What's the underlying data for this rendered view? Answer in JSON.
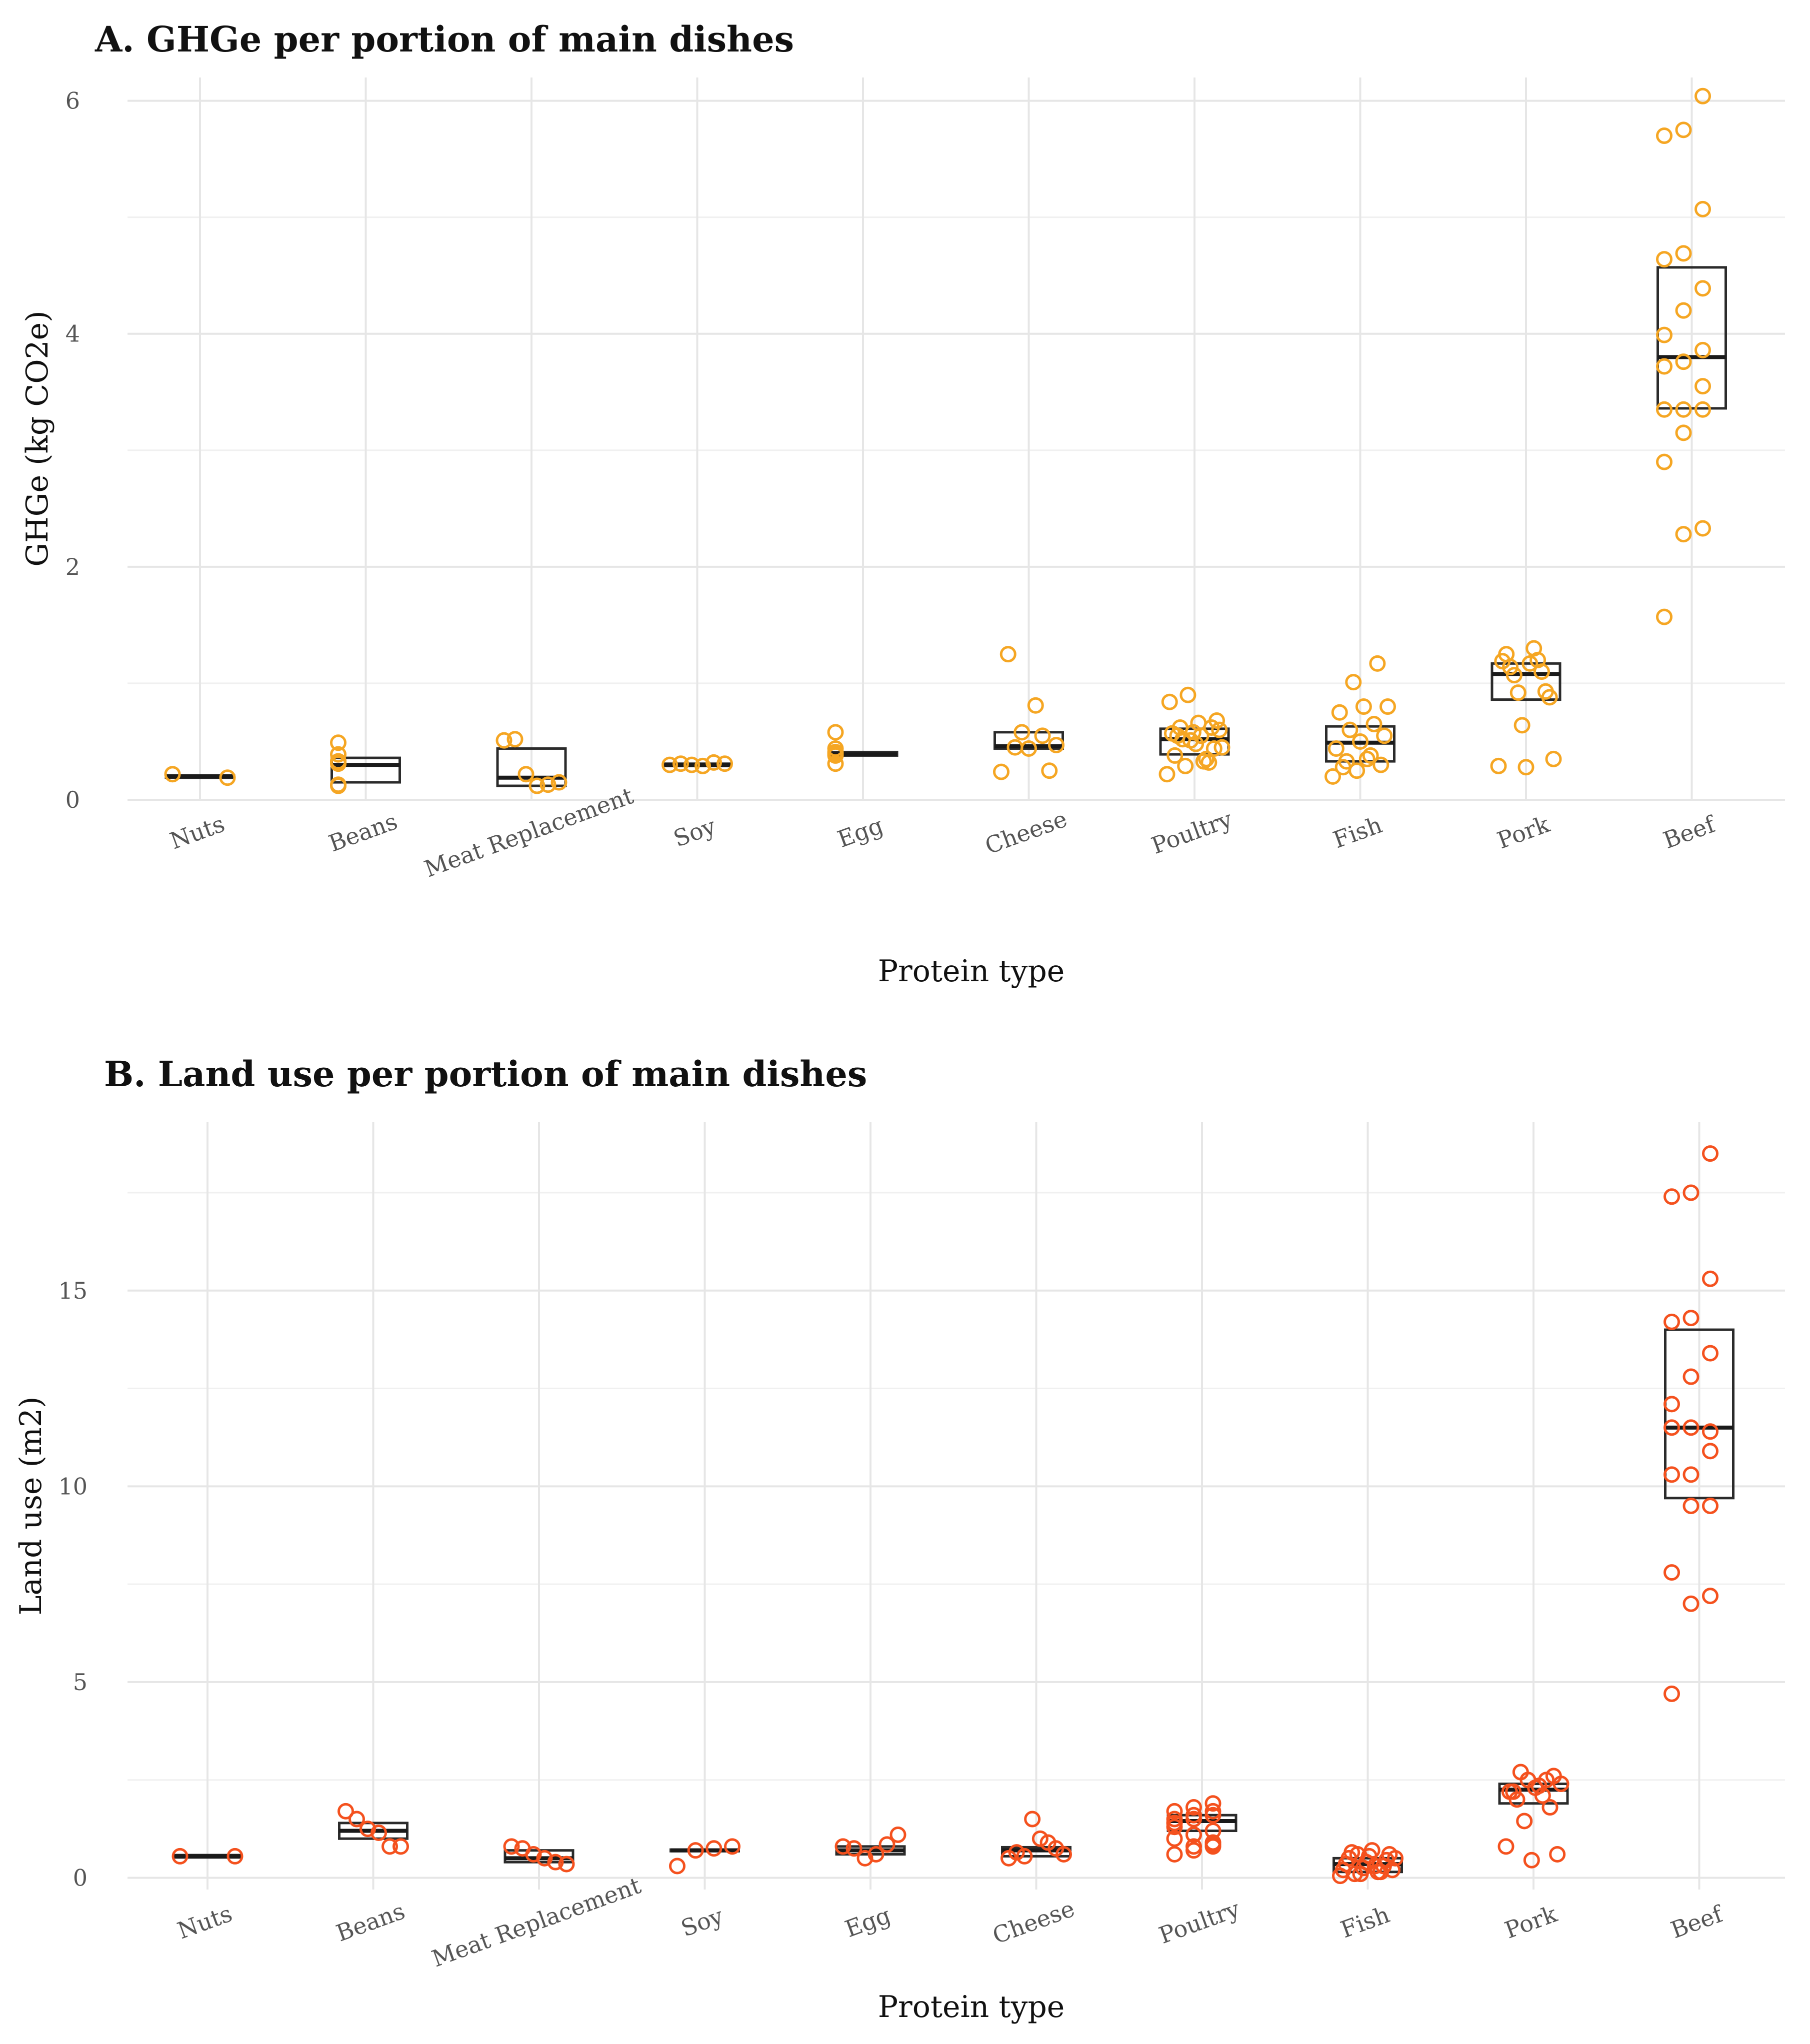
{
  "chart_data": [
    {
      "type": "boxplot",
      "title": "A. GHGe per portion of main dishes",
      "xlabel": "Protein type",
      "ylabel": "GHGe (kg CO2e)",
      "ylim": [
        0,
        6.2
      ],
      "yticks": [
        0,
        2,
        4,
        6
      ],
      "point_color": "#f5a623",
      "categories": [
        "Nuts",
        "Beans",
        "Meat Replacement",
        "Soy",
        "Egg",
        "Cheese",
        "Poultry",
        "Fish",
        "Pork",
        "Beef"
      ],
      "boxes": [
        {
          "q1": 0.19,
          "median": 0.2,
          "q3": 0.21
        },
        {
          "q1": 0.15,
          "median": 0.3,
          "q3": 0.36
        },
        {
          "q1": 0.12,
          "median": 0.19,
          "q3": 0.44
        },
        {
          "q1": 0.29,
          "median": 0.3,
          "q3": 0.31
        },
        {
          "q1": 0.38,
          "median": 0.39,
          "q3": 0.41
        },
        {
          "q1": 0.44,
          "median": 0.46,
          "q3": 0.58
        },
        {
          "q1": 0.39,
          "median": 0.52,
          "q3": 0.61
        },
        {
          "q1": 0.33,
          "median": 0.49,
          "q3": 0.63
        },
        {
          "q1": 0.86,
          "median": 1.08,
          "q3": 1.17
        },
        {
          "q1": 3.36,
          "median": 3.8,
          "q3": 4.57
        }
      ],
      "points": [
        [
          0.22,
          0.19
        ],
        [
          0.12,
          0.33,
          0.31,
          0.39,
          0.13,
          0.49,
          0.33
        ],
        [
          0.51,
          0.52,
          0.22,
          0.12,
          0.13,
          0.15
        ],
        [
          0.3,
          0.31,
          0.3,
          0.29,
          0.32,
          0.31
        ],
        [
          0.31,
          0.39,
          0.58,
          0.4,
          0.38,
          0.44,
          0.41
        ],
        [
          0.24,
          0.25,
          0.81,
          0.58,
          1.25,
          0.47,
          0.55,
          0.44,
          0.45
        ],
        [
          0.22,
          0.29,
          0.33,
          0.45,
          0.52,
          0.55,
          0.6,
          0.62,
          0.66,
          0.68,
          0.55,
          0.48,
          0.44,
          0.38,
          0.58,
          0.62,
          0.57,
          0.51,
          0.32,
          0.84,
          0.9,
          0.35
        ],
        [
          0.2,
          0.25,
          0.3,
          0.33,
          0.38,
          0.44,
          0.5,
          0.55,
          0.6,
          0.65,
          0.75,
          0.8,
          0.8,
          1.01,
          1.17,
          0.28,
          0.35
        ],
        [
          0.29,
          0.28,
          0.35,
          0.64,
          0.88,
          0.92,
          0.93,
          1.07,
          1.1,
          1.14,
          1.2,
          1.25,
          1.3,
          1.19,
          1.17
        ],
        [
          1.57,
          2.28,
          2.33,
          2.9,
          3.15,
          3.35,
          3.35,
          3.35,
          3.55,
          3.72,
          3.76,
          3.86,
          3.99,
          4.2,
          4.39,
          4.64,
          4.69,
          5.07,
          5.7,
          5.75,
          6.04
        ]
      ]
    },
    {
      "type": "boxplot",
      "title": "B. Land use per portion of main dishes",
      "xlabel": "Protein type",
      "ylabel": "Land use (m2)",
      "ylim": [
        -0.3,
        19.3
      ],
      "yticks": [
        0,
        5,
        10,
        15
      ],
      "point_color": "#f4511e",
      "categories": [
        "Nuts",
        "Beans",
        "Meat Replacement",
        "Soy",
        "Egg",
        "Cheese",
        "Poultry",
        "Fish",
        "Pork",
        "Beef"
      ],
      "boxes": [
        {
          "q1": 0.52,
          "median": 0.55,
          "q3": 0.58
        },
        {
          "q1": 1.0,
          "median": 1.2,
          "q3": 1.4
        },
        {
          "q1": 0.4,
          "median": 0.5,
          "q3": 0.7
        },
        {
          "q1": 0.68,
          "median": 0.7,
          "q3": 0.72
        },
        {
          "q1": 0.6,
          "median": 0.7,
          "q3": 0.8
        },
        {
          "q1": 0.55,
          "median": 0.7,
          "q3": 0.78
        },
        {
          "q1": 1.2,
          "median": 1.45,
          "q3": 1.6
        },
        {
          "q1": 0.15,
          "median": 0.35,
          "q3": 0.5
        },
        {
          "q1": 1.9,
          "median": 2.25,
          "q3": 2.4
        },
        {
          "q1": 9.7,
          "median": 11.5,
          "q3": 14.0
        }
      ],
      "points": [
        [
          0.55,
          0.55
        ],
        [
          1.7,
          1.5,
          1.25,
          1.15,
          0.8,
          0.8
        ],
        [
          0.8,
          0.75,
          0.6,
          0.5,
          0.4,
          0.35
        ],
        [
          0.3,
          0.8,
          0.75,
          0.7
        ],
        [
          0.8,
          0.75,
          0.5,
          0.6,
          0.85,
          1.1
        ],
        [
          0.5,
          0.6,
          0.75,
          0.9,
          1.0,
          1.5,
          0.55,
          0.65
        ],
        [
          0.6,
          0.8,
          0.85,
          1.0,
          1.1,
          1.2,
          1.4,
          1.5,
          1.6,
          1.7,
          1.8,
          1.9,
          1.3,
          1.1,
          0.9,
          1.5,
          1.6,
          1.7,
          1.4,
          0.7,
          0.8
        ],
        [
          0.05,
          0.1,
          0.15,
          0.2,
          0.25,
          0.3,
          0.35,
          0.4,
          0.45,
          0.5,
          0.55,
          0.6,
          0.65,
          0.7,
          0.2,
          0.1,
          0.3,
          0.5,
          0.6,
          0.15
        ],
        [
          0.8,
          0.45,
          0.6,
          1.45,
          1.8,
          2.0,
          2.1,
          2.2,
          2.3,
          2.4,
          2.5,
          2.6,
          2.7,
          2.5,
          2.2,
          2.35
        ],
        [
          4.7,
          7.0,
          7.2,
          7.8,
          9.5,
          9.5,
          10.3,
          10.3,
          10.9,
          11.5,
          11.5,
          11.4,
          12.1,
          12.8,
          13.4,
          14.2,
          14.3,
          15.3,
          17.4,
          17.5,
          18.5
        ]
      ]
    }
  ]
}
